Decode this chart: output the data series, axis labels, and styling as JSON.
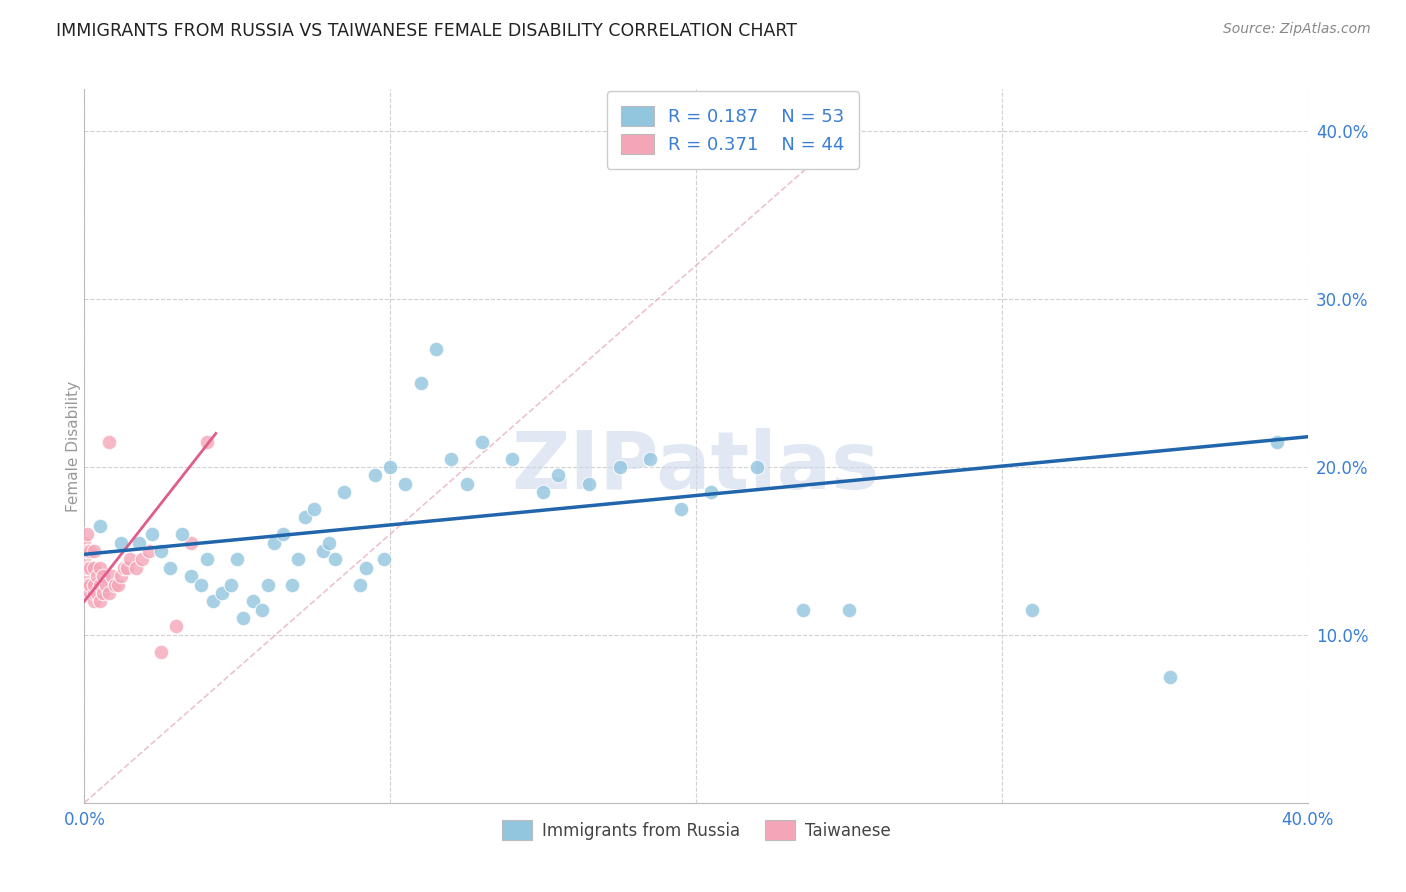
{
  "title": "IMMIGRANTS FROM RUSSIA VS TAIWANESE FEMALE DISABILITY CORRELATION CHART",
  "source": "Source: ZipAtlas.com",
  "ylabel_text": "Female Disability",
  "x_min": 0.0,
  "x_max": 0.4,
  "y_min": 0.0,
  "y_max": 0.425,
  "x_ticks": [
    0.0,
    0.1,
    0.2,
    0.3,
    0.4
  ],
  "x_tick_labels": [
    "0.0%",
    "",
    "",
    "",
    "40.0%"
  ],
  "y_ticks": [
    0.1,
    0.2,
    0.3,
    0.4
  ],
  "y_tick_labels": [
    "10.0%",
    "20.0%",
    "30.0%",
    "40.0%"
  ],
  "blue_color": "#92c5de",
  "pink_color": "#f4a6b8",
  "trend_blue_color": "#2166ac",
  "trend_pink_color": "#e05c8a",
  "r_n_color": "#3a7fd5",
  "title_color": "#222222",
  "axis_label_color": "#3a7fd5",
  "watermark_color": "#cdd8ec",
  "blue_scatter_x": [
    0.005,
    0.012,
    0.018,
    0.022,
    0.025,
    0.028,
    0.032,
    0.035,
    0.038,
    0.04,
    0.042,
    0.045,
    0.048,
    0.05,
    0.052,
    0.055,
    0.058,
    0.06,
    0.062,
    0.065,
    0.068,
    0.07,
    0.072,
    0.075,
    0.078,
    0.08,
    0.082,
    0.085,
    0.09,
    0.092,
    0.095,
    0.098,
    0.1,
    0.105,
    0.11,
    0.115,
    0.12,
    0.125,
    0.13,
    0.14,
    0.15,
    0.155,
    0.165,
    0.175,
    0.185,
    0.195,
    0.205,
    0.22,
    0.235,
    0.25,
    0.31,
    0.355,
    0.39
  ],
  "blue_scatter_y": [
    0.165,
    0.155,
    0.155,
    0.16,
    0.15,
    0.14,
    0.16,
    0.135,
    0.13,
    0.145,
    0.12,
    0.125,
    0.13,
    0.145,
    0.11,
    0.12,
    0.115,
    0.13,
    0.155,
    0.16,
    0.13,
    0.145,
    0.17,
    0.175,
    0.15,
    0.155,
    0.145,
    0.185,
    0.13,
    0.14,
    0.195,
    0.145,
    0.2,
    0.19,
    0.25,
    0.27,
    0.205,
    0.19,
    0.215,
    0.205,
    0.185,
    0.195,
    0.19,
    0.2,
    0.205,
    0.175,
    0.185,
    0.2,
    0.115,
    0.115,
    0.115,
    0.075,
    0.215
  ],
  "pink_scatter_x": [
    0.0,
    0.0,
    0.0,
    0.0,
    0.0,
    0.0,
    0.0,
    0.001,
    0.001,
    0.001,
    0.001,
    0.002,
    0.002,
    0.002,
    0.002,
    0.003,
    0.003,
    0.003,
    0.003,
    0.003,
    0.004,
    0.004,
    0.005,
    0.005,
    0.005,
    0.006,
    0.006,
    0.007,
    0.008,
    0.009,
    0.01,
    0.011,
    0.012,
    0.013,
    0.014,
    0.015,
    0.017,
    0.019,
    0.021,
    0.025,
    0.03,
    0.035,
    0.04,
    0.008
  ],
  "pink_scatter_y": [
    0.125,
    0.13,
    0.135,
    0.14,
    0.145,
    0.15,
    0.155,
    0.13,
    0.14,
    0.15,
    0.16,
    0.125,
    0.13,
    0.14,
    0.15,
    0.12,
    0.125,
    0.13,
    0.14,
    0.15,
    0.125,
    0.135,
    0.12,
    0.13,
    0.14,
    0.125,
    0.135,
    0.13,
    0.125,
    0.135,
    0.13,
    0.13,
    0.135,
    0.14,
    0.14,
    0.145,
    0.14,
    0.145,
    0.15,
    0.09,
    0.105,
    0.155,
    0.215,
    0.215
  ],
  "blue_trend_x": [
    0.0,
    0.4
  ],
  "blue_trend_y": [
    0.148,
    0.218
  ],
  "pink_trend_x": [
    0.0,
    0.043
  ],
  "pink_trend_y": [
    0.12,
    0.22
  ],
  "ref_line_x": [
    0.0,
    0.25
  ],
  "ref_line_y": [
    0.0,
    0.4
  ]
}
